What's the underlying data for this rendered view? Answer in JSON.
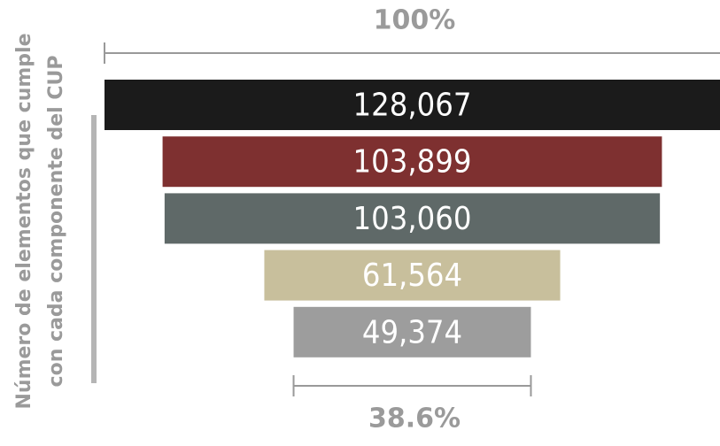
{
  "chart_data": {
    "type": "funnel",
    "y_label": [
      "Número de elementos que cumple",
      "con cada componente del CUP"
    ],
    "annotations": {
      "top": "100%",
      "bottom": "38.6%"
    },
    "values": [
      128067,
      103899,
      103060,
      61564,
      49374
    ],
    "value_labels": [
      "128,067",
      "103,899",
      "103,060",
      "61,564",
      "49,374"
    ],
    "colors": [
      "#1b1b1b",
      "#7e3030",
      "#5f6968",
      "#c8bf9c",
      "#9d9d9d"
    ]
  }
}
